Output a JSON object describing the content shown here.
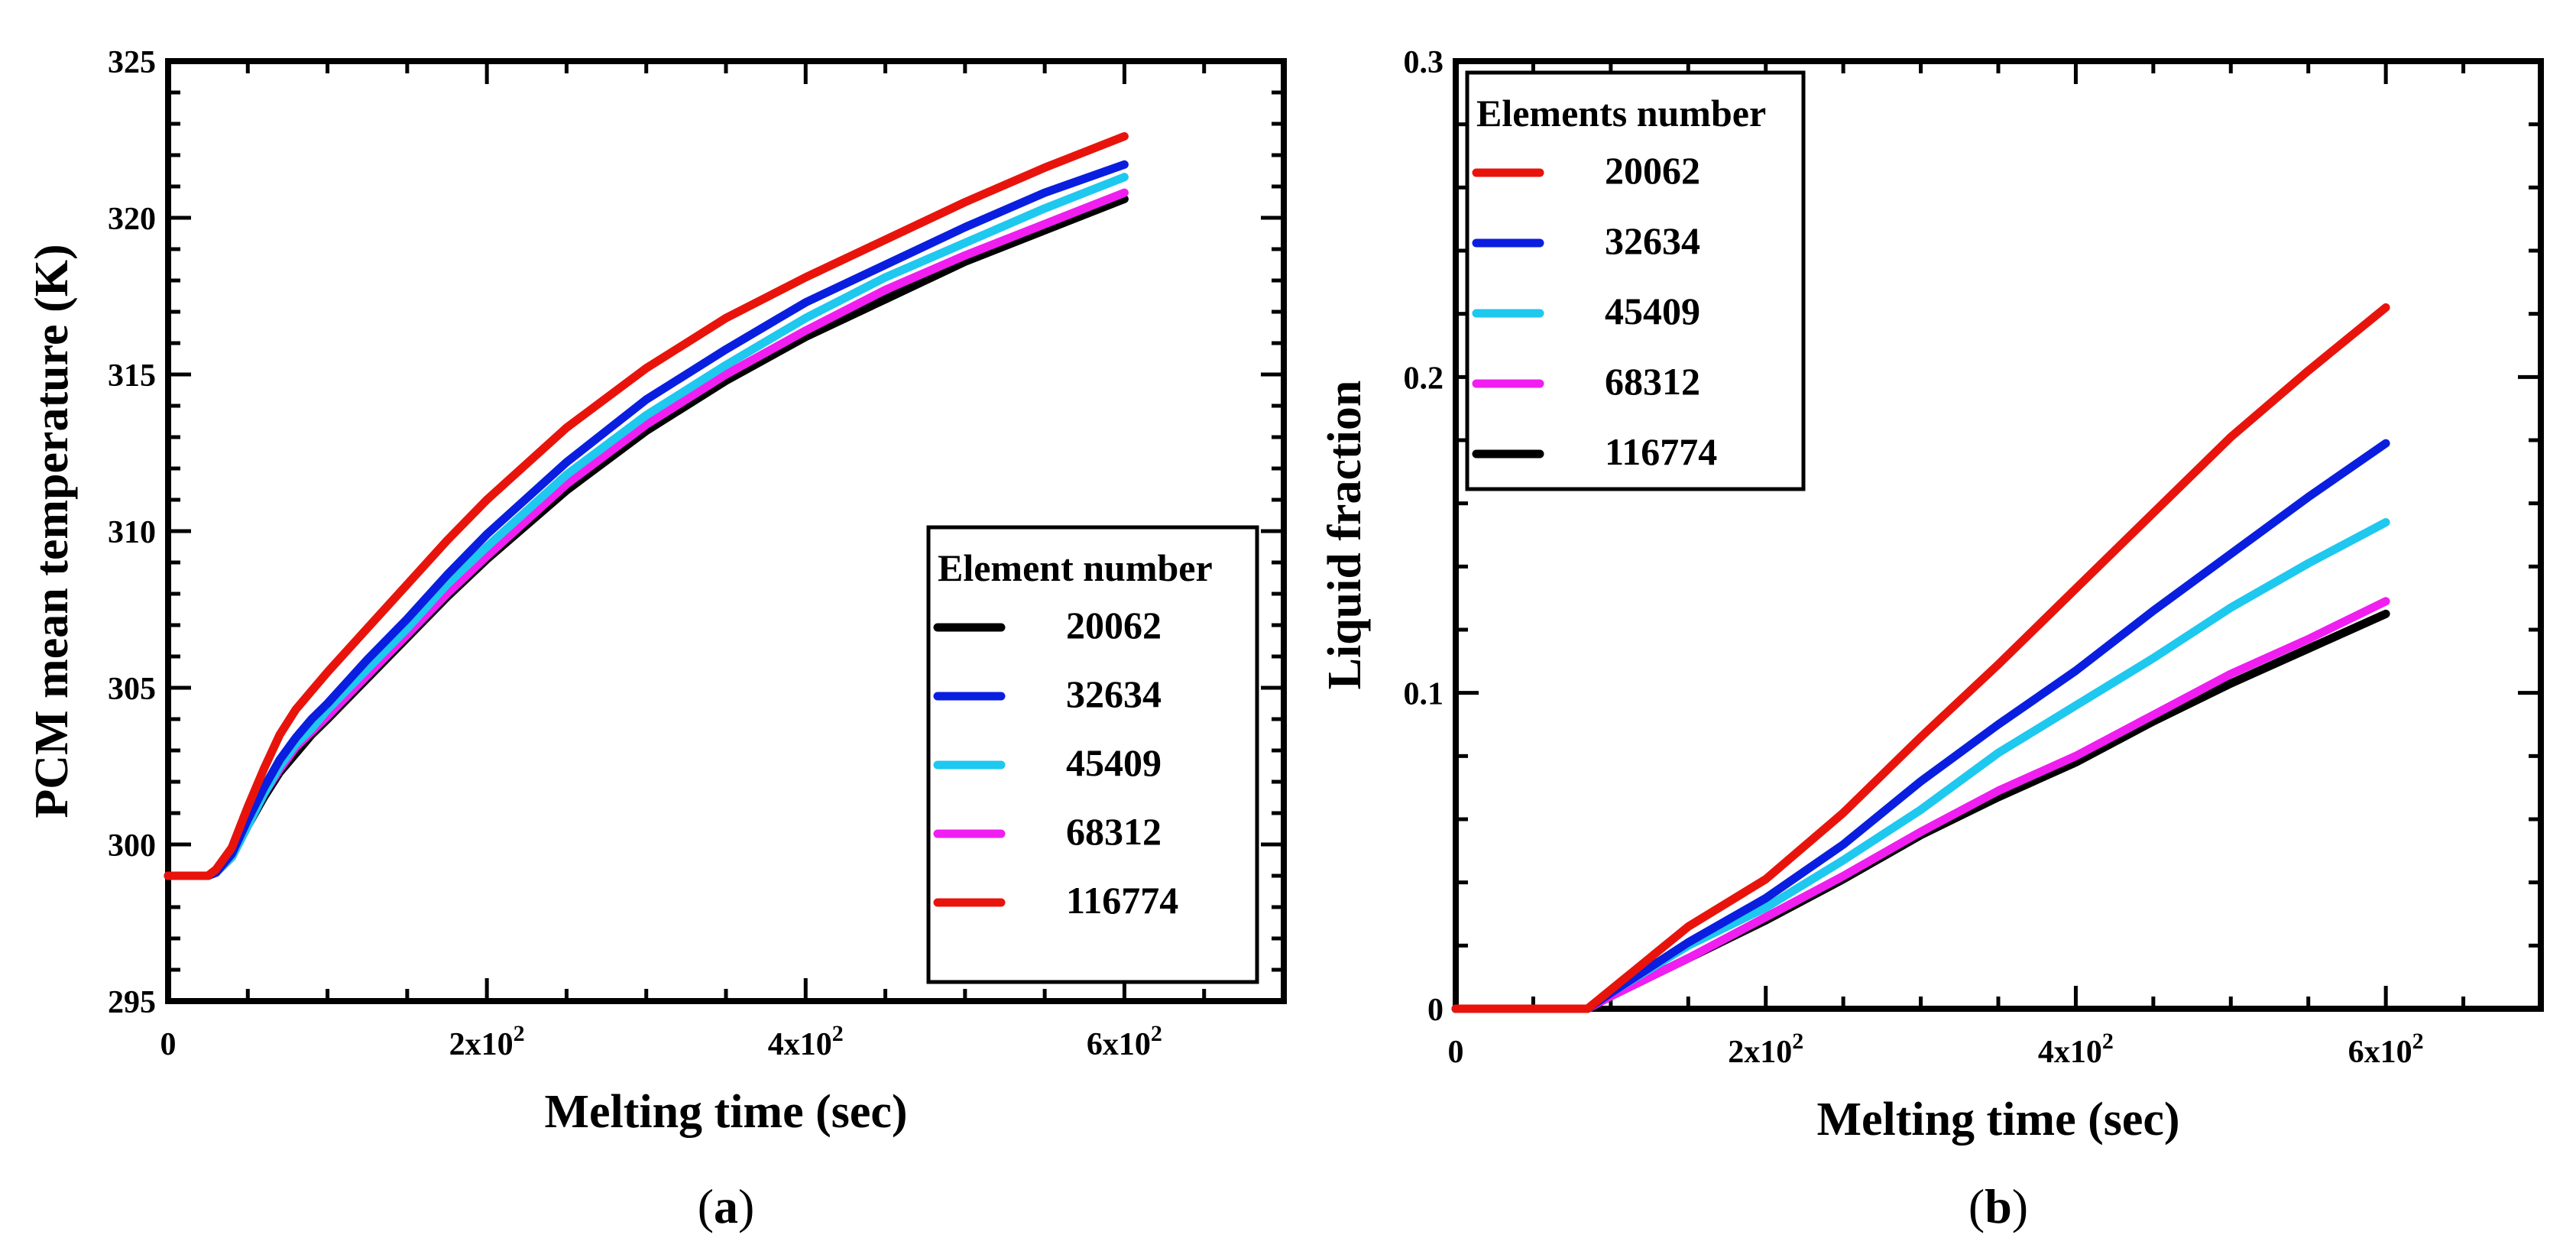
{
  "chart_data": [
    {
      "id": "a",
      "type": "line",
      "caption": "(a)",
      "caption_letter": "a",
      "xlabel": "Melting time (sec)",
      "ylabel": "PCM mean temperature (K)",
      "xlim": [
        0,
        700
      ],
      "ylim": [
        295,
        325
      ],
      "xticks": [
        {
          "value": 0,
          "label": "0"
        },
        {
          "value": 200,
          "label": "2x10",
          "sup": "2"
        },
        {
          "value": 400,
          "label": "4x10",
          "sup": "2"
        },
        {
          "value": 600,
          "label": "6x10",
          "sup": "2"
        }
      ],
      "yticks": [
        {
          "value": 295,
          "label": "295"
        },
        {
          "value": 300,
          "label": "300"
        },
        {
          "value": 305,
          "label": "305"
        },
        {
          "value": 310,
          "label": "310"
        },
        {
          "value": 315,
          "label": "315"
        },
        {
          "value": 320,
          "label": "320"
        },
        {
          "value": 325,
          "label": "325"
        }
      ],
      "legend": {
        "title": "Element number",
        "position": "lower-right",
        "entries": [
          {
            "label": "20062",
            "color": "#000000"
          },
          {
            "label": "32634",
            "color": "#0a1ee0"
          },
          {
            "label": "45409",
            "color": "#1ec8ef"
          },
          {
            "label": "68312",
            "color": "#f01ef0"
          },
          {
            "label": "116774",
            "color": "#e8140c"
          }
        ]
      },
      "x": [
        0,
        25,
        30,
        40,
        50,
        60,
        70,
        80,
        90,
        100,
        125,
        150,
        175,
        200,
        250,
        300,
        350,
        400,
        450,
        500,
        550,
        600
      ],
      "series": [
        {
          "name": "20062",
          "color": "#000000",
          "values": [
            299,
            299,
            299.1,
            299.6,
            300.6,
            301.5,
            302.3,
            302.9,
            303.5,
            304.0,
            305.3,
            306.6,
            307.9,
            309.1,
            311.3,
            313.2,
            314.8,
            316.2,
            317.4,
            318.6,
            319.6,
            320.6
          ]
        },
        {
          "name": "68312",
          "color": "#f01ef0",
          "values": [
            299,
            299,
            299.1,
            299.6,
            300.6,
            301.6,
            302.4,
            303.1,
            303.6,
            304.1,
            305.4,
            306.7,
            308.0,
            309.2,
            311.5,
            313.4,
            315.0,
            316.4,
            317.7,
            318.8,
            319.8,
            320.8
          ]
        },
        {
          "name": "45409",
          "color": "#1ec8ef",
          "values": [
            299,
            299,
            299.1,
            299.6,
            300.6,
            301.6,
            302.5,
            303.2,
            303.7,
            304.3,
            305.6,
            306.9,
            308.3,
            309.5,
            311.8,
            313.7,
            315.3,
            316.8,
            318.1,
            319.2,
            320.3,
            321.3
          ]
        },
        {
          "name": "32634",
          "color": "#0a1ee0",
          "values": [
            299,
            299,
            299.1,
            299.7,
            300.8,
            301.8,
            302.7,
            303.4,
            304.0,
            304.5,
            305.9,
            307.2,
            308.6,
            309.9,
            312.2,
            314.2,
            315.8,
            317.3,
            318.5,
            319.7,
            320.8,
            321.7
          ]
        },
        {
          "name": "116774",
          "color": "#e8140c",
          "values": [
            299,
            299,
            299.2,
            299.9,
            301.2,
            302.4,
            303.5,
            304.3,
            304.9,
            305.5,
            306.9,
            308.3,
            309.7,
            311.0,
            313.3,
            315.2,
            316.8,
            318.1,
            319.3,
            320.5,
            321.6,
            322.6
          ]
        }
      ]
    },
    {
      "id": "b",
      "type": "line",
      "caption": "(b)",
      "caption_letter": "b",
      "xlabel": "Melting time (sec)",
      "ylabel": "Liquid fraction",
      "xlim": [
        0,
        700
      ],
      "ylim": [
        0,
        0.3
      ],
      "xticks": [
        {
          "value": 0,
          "label": "0"
        },
        {
          "value": 200,
          "label": "2x10",
          "sup": "2"
        },
        {
          "value": 400,
          "label": "4x10",
          "sup": "2"
        },
        {
          "value": 600,
          "label": "6x10",
          "sup": "2"
        }
      ],
      "yticks": [
        {
          "value": 0,
          "label": "0"
        },
        {
          "value": 0.1,
          "label": "0.1"
        },
        {
          "value": 0.2,
          "label": "0.2"
        },
        {
          "value": 0.3,
          "label": "0.3"
        }
      ],
      "legend": {
        "title": "Elements number",
        "position": "upper-left",
        "entries": [
          {
            "label": "20062",
            "color": "#e8140c"
          },
          {
            "label": "32634",
            "color": "#0a1ee0"
          },
          {
            "label": "45409",
            "color": "#1ec8ef"
          },
          {
            "label": "68312",
            "color": "#f01ef0"
          },
          {
            "label": "116774",
            "color": "#000000"
          }
        ]
      },
      "x": [
        0,
        80,
        85,
        100,
        150,
        200,
        250,
        300,
        350,
        400,
        450,
        500,
        550,
        600
      ],
      "series": [
        {
          "name": "116774",
          "color": "#000000",
          "values": [
            0,
            0,
            0,
            0.004,
            0.016,
            0.028,
            0.041,
            0.055,
            0.067,
            0.078,
            0.091,
            0.103,
            0.114,
            0.125
          ]
        },
        {
          "name": "68312",
          "color": "#f01ef0",
          "values": [
            0,
            0,
            0,
            0.004,
            0.016,
            0.029,
            0.042,
            0.056,
            0.069,
            0.08,
            0.093,
            0.106,
            0.117,
            0.129
          ]
        },
        {
          "name": "45409",
          "color": "#1ec8ef",
          "values": [
            0,
            0,
            0,
            0.005,
            0.02,
            0.032,
            0.047,
            0.063,
            0.081,
            0.096,
            0.111,
            0.127,
            0.141,
            0.154
          ]
        },
        {
          "name": "32634",
          "color": "#0a1ee0",
          "values": [
            0,
            0,
            0,
            0.005,
            0.021,
            0.035,
            0.052,
            0.072,
            0.09,
            0.107,
            0.126,
            0.144,
            0.162,
            0.179
          ]
        },
        {
          "name": "20062",
          "color": "#e8140c",
          "values": [
            0,
            0,
            0,
            0.006,
            0.026,
            0.041,
            0.062,
            0.086,
            0.109,
            0.133,
            0.157,
            0.181,
            0.202,
            0.222
          ]
        }
      ]
    }
  ]
}
